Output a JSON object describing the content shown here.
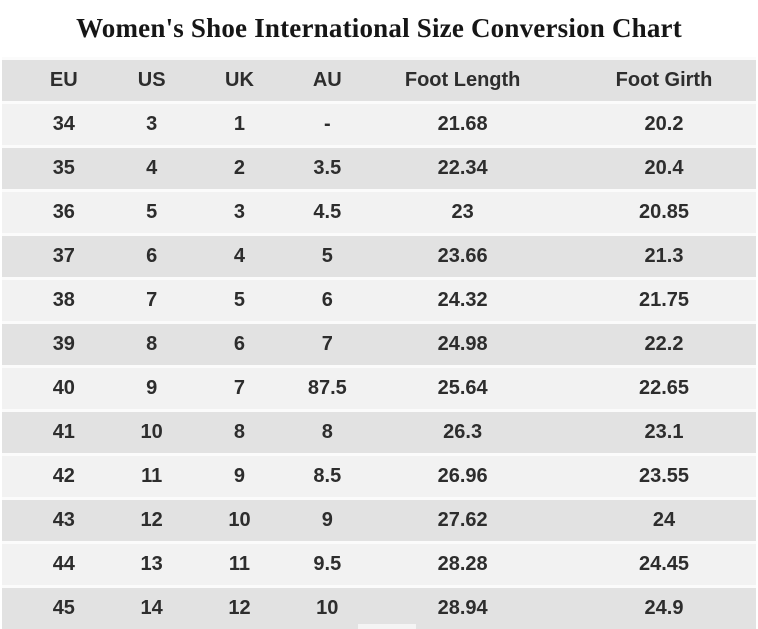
{
  "title": "Women's Shoe International Size Conversion Chart",
  "colors": {
    "background": "#ffffff",
    "header_row": "#e1e1e1",
    "row_light": "#f2f2f2",
    "row_dark": "#e2e2e2",
    "row_gap": "#fbfbfb",
    "text": "#2d2d2d",
    "title": "#161616"
  },
  "chart_data": {
    "type": "table",
    "title": "Women's Shoe International Size Conversion Chart",
    "columns": [
      "EU",
      "US",
      "UK",
      "AU",
      "Foot Length",
      "Foot Girth"
    ],
    "rows": [
      [
        "34",
        "3",
        "1",
        "-",
        "21.68",
        "20.2"
      ],
      [
        "35",
        "4",
        "2",
        "3.5",
        "22.34",
        "20.4"
      ],
      [
        "36",
        "5",
        "3",
        "4.5",
        "23",
        "20.85"
      ],
      [
        "37",
        "6",
        "4",
        "5",
        "23.66",
        "21.3"
      ],
      [
        "38",
        "7",
        "5",
        "6",
        "24.32",
        "21.75"
      ],
      [
        "39",
        "8",
        "6",
        "7",
        "24.98",
        "22.2"
      ],
      [
        "40",
        "9",
        "7",
        "87.5",
        "25.64",
        "22.65"
      ],
      [
        "41",
        "10",
        "8",
        "8",
        "26.3",
        "23.1"
      ],
      [
        "42",
        "11",
        "9",
        "8.5",
        "26.96",
        "23.55"
      ],
      [
        "43",
        "12",
        "10",
        "9",
        "27.62",
        "24"
      ],
      [
        "44",
        "13",
        "11",
        "9.5",
        "28.28",
        "24.45"
      ],
      [
        "45",
        "14",
        "12",
        "10",
        "28.94",
        "24.9"
      ]
    ],
    "layout": {
      "striping": "header gray, then alternating light/gray data rows",
      "column_alignment": "center"
    }
  }
}
